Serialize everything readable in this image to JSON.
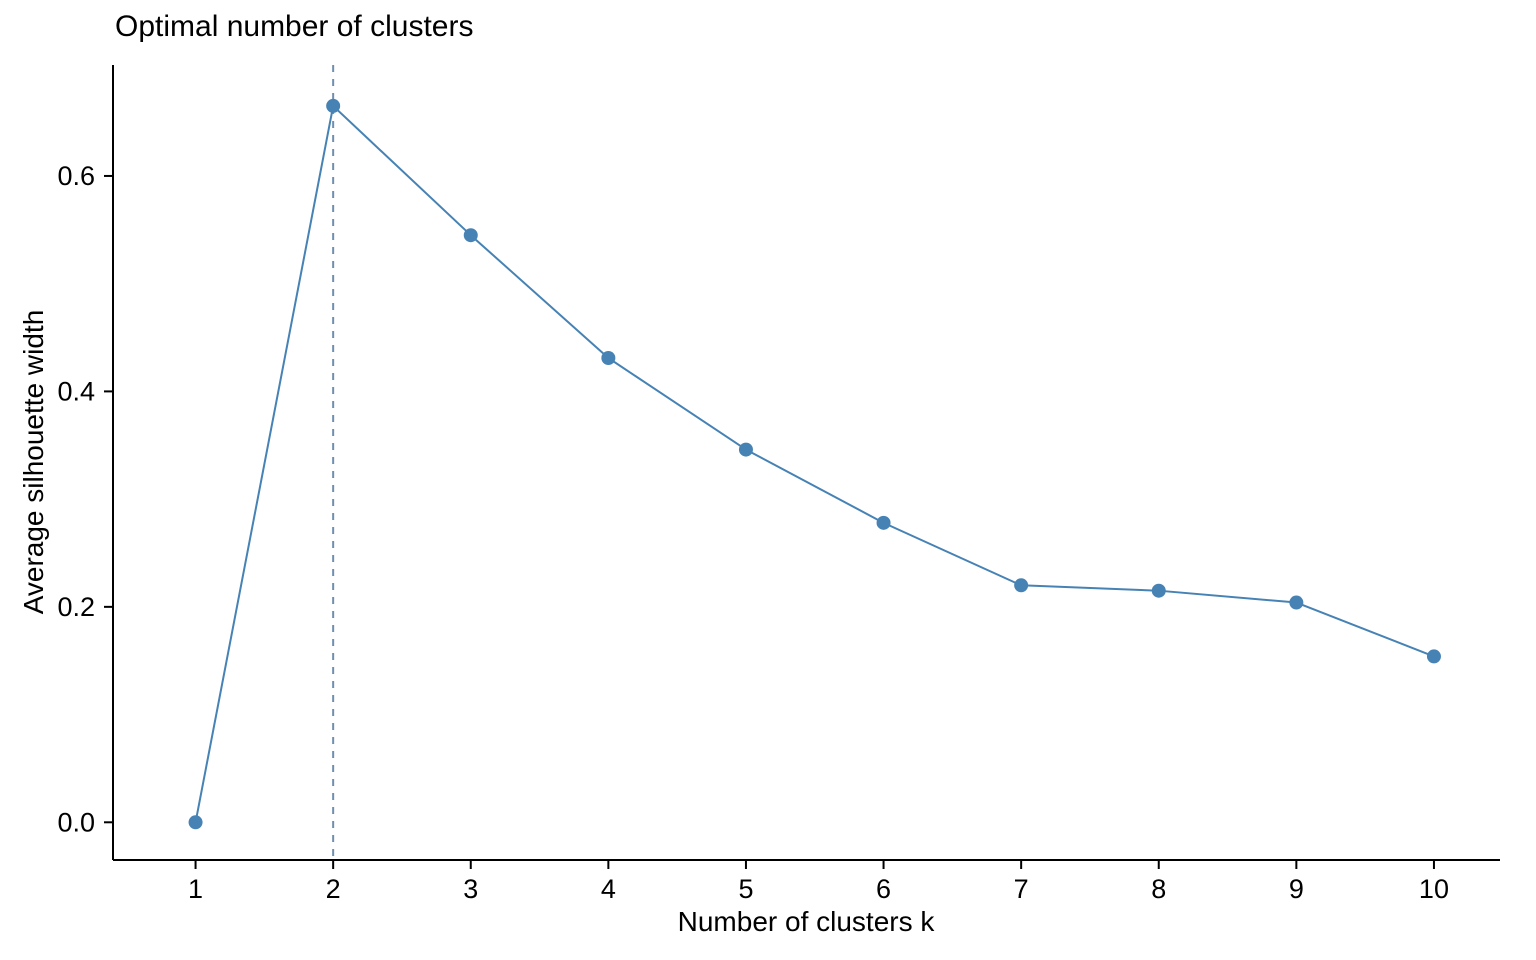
{
  "chart_data": {
    "type": "line",
    "title": "Optimal number of clusters",
    "xlabel": "Number of clusters k",
    "ylabel": "Average silhouette width",
    "x": [
      1,
      2,
      3,
      4,
      5,
      6,
      7,
      8,
      9,
      10
    ],
    "y": [
      0.0,
      0.665,
      0.545,
      0.431,
      0.346,
      0.278,
      0.22,
      0.215,
      0.204,
      0.154
    ],
    "x_tick_labels": [
      "1",
      "2",
      "3",
      "4",
      "5",
      "6",
      "7",
      "8",
      "9",
      "10"
    ],
    "y_ticks": [
      0.0,
      0.2,
      0.4,
      0.6
    ],
    "y_tick_labels": [
      "0.0",
      "0.2",
      "0.4",
      "0.6"
    ],
    "xlim": [
      0.4,
      10.48
    ],
    "ylim": [
      -0.035,
      0.703
    ],
    "vline_x": 2,
    "grid": false,
    "legend": "none",
    "line_color": "#4682B4",
    "point_color": "#4682B4",
    "vline_color": "#6F8FAF",
    "axis_color": "#000000",
    "text_color": "#000000"
  }
}
